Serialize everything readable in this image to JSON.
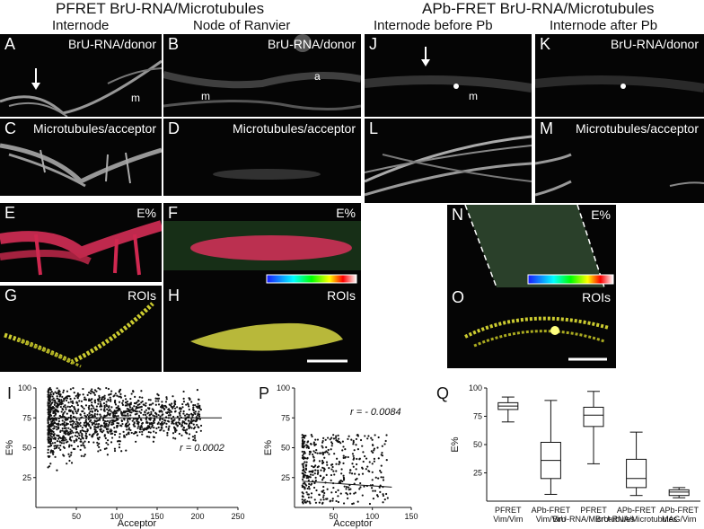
{
  "titles": {
    "left": "PFRET BrU-RNA/Microtubules",
    "right": "APb-FRET BrU-RNA/Microtubules",
    "col_internode": "Internode",
    "col_node": "Node of Ranvier",
    "col_before": "Internode before Pb",
    "col_after": "Internode after Pb"
  },
  "panels": {
    "A": {
      "label": "A",
      "caption": "BrU-RNA/donor",
      "marks": [
        "m"
      ]
    },
    "B": {
      "label": "B",
      "caption": "BrU-RNA/donor",
      "marks": [
        "m",
        "a"
      ]
    },
    "C": {
      "label": "C",
      "caption": "Microtubules/acceptor"
    },
    "D": {
      "label": "D",
      "caption": "Microtubules/acceptor"
    },
    "E": {
      "label": "E",
      "caption": "E%"
    },
    "F": {
      "label": "F",
      "caption": "E%"
    },
    "G": {
      "label": "G",
      "caption": "ROIs"
    },
    "H": {
      "label": "H",
      "caption": "ROIs"
    },
    "J": {
      "label": "J",
      "caption": "",
      "marks": [
        "m"
      ]
    },
    "K": {
      "label": "K",
      "caption": "BrU-RNA/donor"
    },
    "L": {
      "label": "L",
      "caption": ""
    },
    "M": {
      "label": "M",
      "caption": "Microtubules/acceptor"
    },
    "N": {
      "label": "N",
      "caption": "E%"
    },
    "O": {
      "label": "O",
      "caption": "ROIs"
    }
  },
  "chart_data": [
    {
      "panel": "I",
      "type": "scatter",
      "xlabel": "Acceptor",
      "ylabel": "E%",
      "xlim": [
        0,
        250
      ],
      "ylim": [
        0,
        100
      ],
      "xticks": [
        50,
        100,
        150,
        200,
        250
      ],
      "yticks": [
        25,
        50,
        75,
        100
      ],
      "annotation": "r = 0.0002",
      "trend": {
        "x": [
          15,
          230
        ],
        "y": [
          75,
          75
        ]
      },
      "points_description_values": {
        "x_center": 45,
        "y_center": 76
      }
    },
    {
      "panel": "P",
      "type": "scatter",
      "xlabel": "Acceptor",
      "ylabel": "E%",
      "xlim": [
        0,
        150
      ],
      "ylim": [
        0,
        100
      ],
      "xticks": [
        50,
        100,
        150
      ],
      "yticks": [
        25,
        50,
        75,
        100
      ],
      "annotation": "r = - 0.0084",
      "trend": {
        "x": [
          10,
          125
        ],
        "y": [
          22,
          17
        ]
      }
    },
    {
      "panel": "Q",
      "type": "box",
      "ylabel": "E%",
      "ylim": [
        0,
        100
      ],
      "yticks": [
        25,
        50,
        75,
        100
      ],
      "groups": [
        {
          "method": "PFRET",
          "probe": "Vim/Vim",
          "min": 70,
          "q1": 81,
          "median": 84,
          "q3": 87,
          "max": 92
        },
        {
          "method": "APb-FRET",
          "probe": "Vim/Vim",
          "min": 6,
          "q1": 20,
          "median": 36,
          "q3": 52,
          "max": 89
        },
        {
          "method": "PFRET",
          "probe": "BrU-RNA/Microtubules",
          "min": 33,
          "q1": 66,
          "median": 76,
          "q3": 83,
          "max": 97
        },
        {
          "method": "APb-FRET",
          "probe": "BrU-RNA/Microtubules",
          "min": 5,
          "q1": 12,
          "median": 20,
          "q3": 37,
          "max": 61
        },
        {
          "method": "APb-FRET",
          "probe": "MAG/Vim",
          "min": 3,
          "q1": 5,
          "median": 8,
          "q3": 10,
          "max": 12
        }
      ]
    }
  ],
  "graph_labels": {
    "I": "I",
    "P": "P",
    "Q": "Q"
  }
}
